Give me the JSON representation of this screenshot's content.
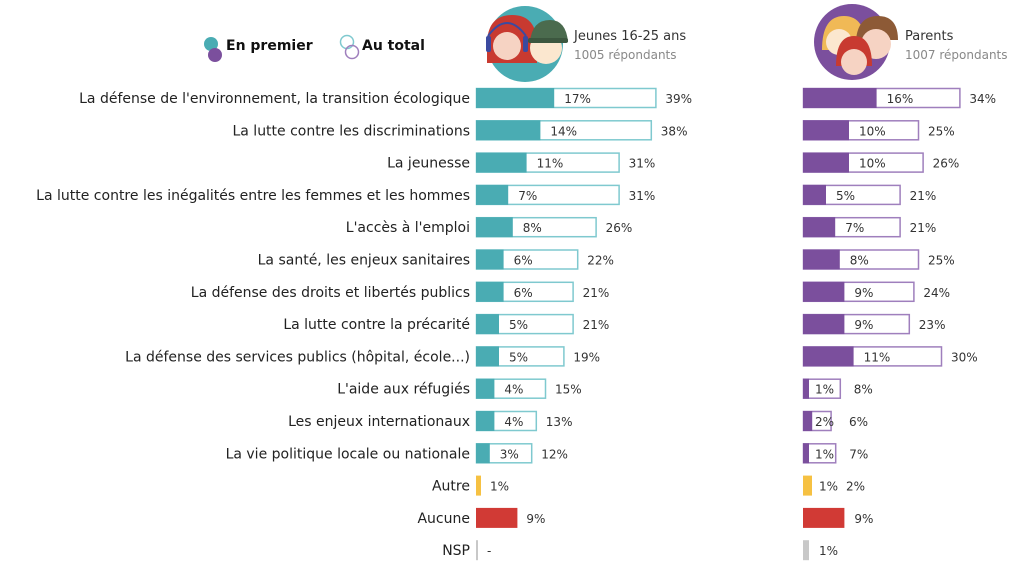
{
  "legend": {
    "first_label": "En premier",
    "total_label": "Au total"
  },
  "groups": [
    {
      "id": "youth",
      "title": "Jeunes 16-25 ans",
      "subtitle": "1005 répondants",
      "color": "#4aacb3",
      "avatar_bg": "#4aacb3"
    },
    {
      "id": "parents",
      "title": "Parents",
      "subtitle": "1007 répondants",
      "color": "#7b4f9d",
      "avatar_bg": "#7b4f9d"
    }
  ],
  "colors": {
    "youth": "#4aacb3",
    "youth_outline": "#7fc9cf",
    "parents": "#7b4f9d",
    "parents_outline": "#9f7fbd",
    "autre": "#f6c142",
    "aucune": "#d13a35",
    "nsp": "#c8c8c8"
  },
  "chart_data": {
    "type": "bar",
    "title": "",
    "xlabel": "",
    "ylabel": "",
    "unit": "%",
    "orientation": "horizontal",
    "legend": [
      "En premier",
      "Au total"
    ],
    "legend_position": "top-left",
    "categories": [
      "La défense de l'environnement, la transition écologique",
      "La lutte contre les discriminations",
      "La jeunesse",
      "La lutte contre les inégalités entre les femmes et les hommes",
      "L'accès à l'emploi",
      "La santé, les enjeux sanitaires",
      "La défense des droits et libertés publics",
      "La lutte contre la précarité",
      "La défense des services publics (hôpital, école...)",
      "L'aide aux réfugiés",
      "Les enjeux internationaux",
      "La vie politique locale ou nationale",
      "Autre",
      "Aucune",
      "NSP"
    ],
    "category_kinds": [
      "topic",
      "topic",
      "topic",
      "topic",
      "topic",
      "topic",
      "topic",
      "topic",
      "topic",
      "topic",
      "topic",
      "topic",
      "autre",
      "aucune",
      "nsp"
    ],
    "series": [
      {
        "name": "Jeunes 16-25 ans - En premier",
        "group": "youth",
        "kind": "first",
        "values": [
          17,
          14,
          11,
          7,
          8,
          6,
          6,
          5,
          5,
          4,
          4,
          3,
          null,
          null,
          null
        ]
      },
      {
        "name": "Jeunes 16-25 ans - Au total",
        "group": "youth",
        "kind": "total",
        "values": [
          39,
          38,
          31,
          31,
          26,
          22,
          21,
          21,
          19,
          15,
          13,
          12,
          1,
          9,
          0
        ]
      },
      {
        "name": "Parents - En premier",
        "group": "parents",
        "kind": "first",
        "values": [
          16,
          10,
          10,
          5,
          7,
          8,
          9,
          9,
          11,
          1,
          2,
          1,
          1,
          null,
          null
        ]
      },
      {
        "name": "Parents - Au total",
        "group": "parents",
        "kind": "total",
        "values": [
          34,
          25,
          26,
          21,
          21,
          25,
          24,
          23,
          30,
          8,
          6,
          7,
          2,
          9,
          1
        ]
      }
    ],
    "value_labels": {
      "youth_first": [
        "17%",
        "14%",
        "11%",
        "7%",
        "8%",
        "6%",
        "6%",
        "5%",
        "5%",
        "4%",
        "4%",
        "3%",
        "",
        "",
        ""
      ],
      "youth_total": [
        "39%",
        "38%",
        "31%",
        "31%",
        "26%",
        "22%",
        "21%",
        "21%",
        "19%",
        "15%",
        "13%",
        "12%",
        "1%",
        "9%",
        "-"
      ],
      "parents_first": [
        "16%",
        "10%",
        "10%",
        "5%",
        "7%",
        "8%",
        "9%",
        "9%",
        "11%",
        "1%",
        "2%",
        "1%",
        "1%",
        "",
        ""
      ],
      "parents_total": [
        "34%",
        "25%",
        "26%",
        "21%",
        "21%",
        "25%",
        "24%",
        "23%",
        "30%",
        "8%",
        "6%",
        "7%",
        "2%",
        "9%",
        "1%"
      ]
    },
    "xlim": [
      0,
      40
    ],
    "grid": false
  }
}
